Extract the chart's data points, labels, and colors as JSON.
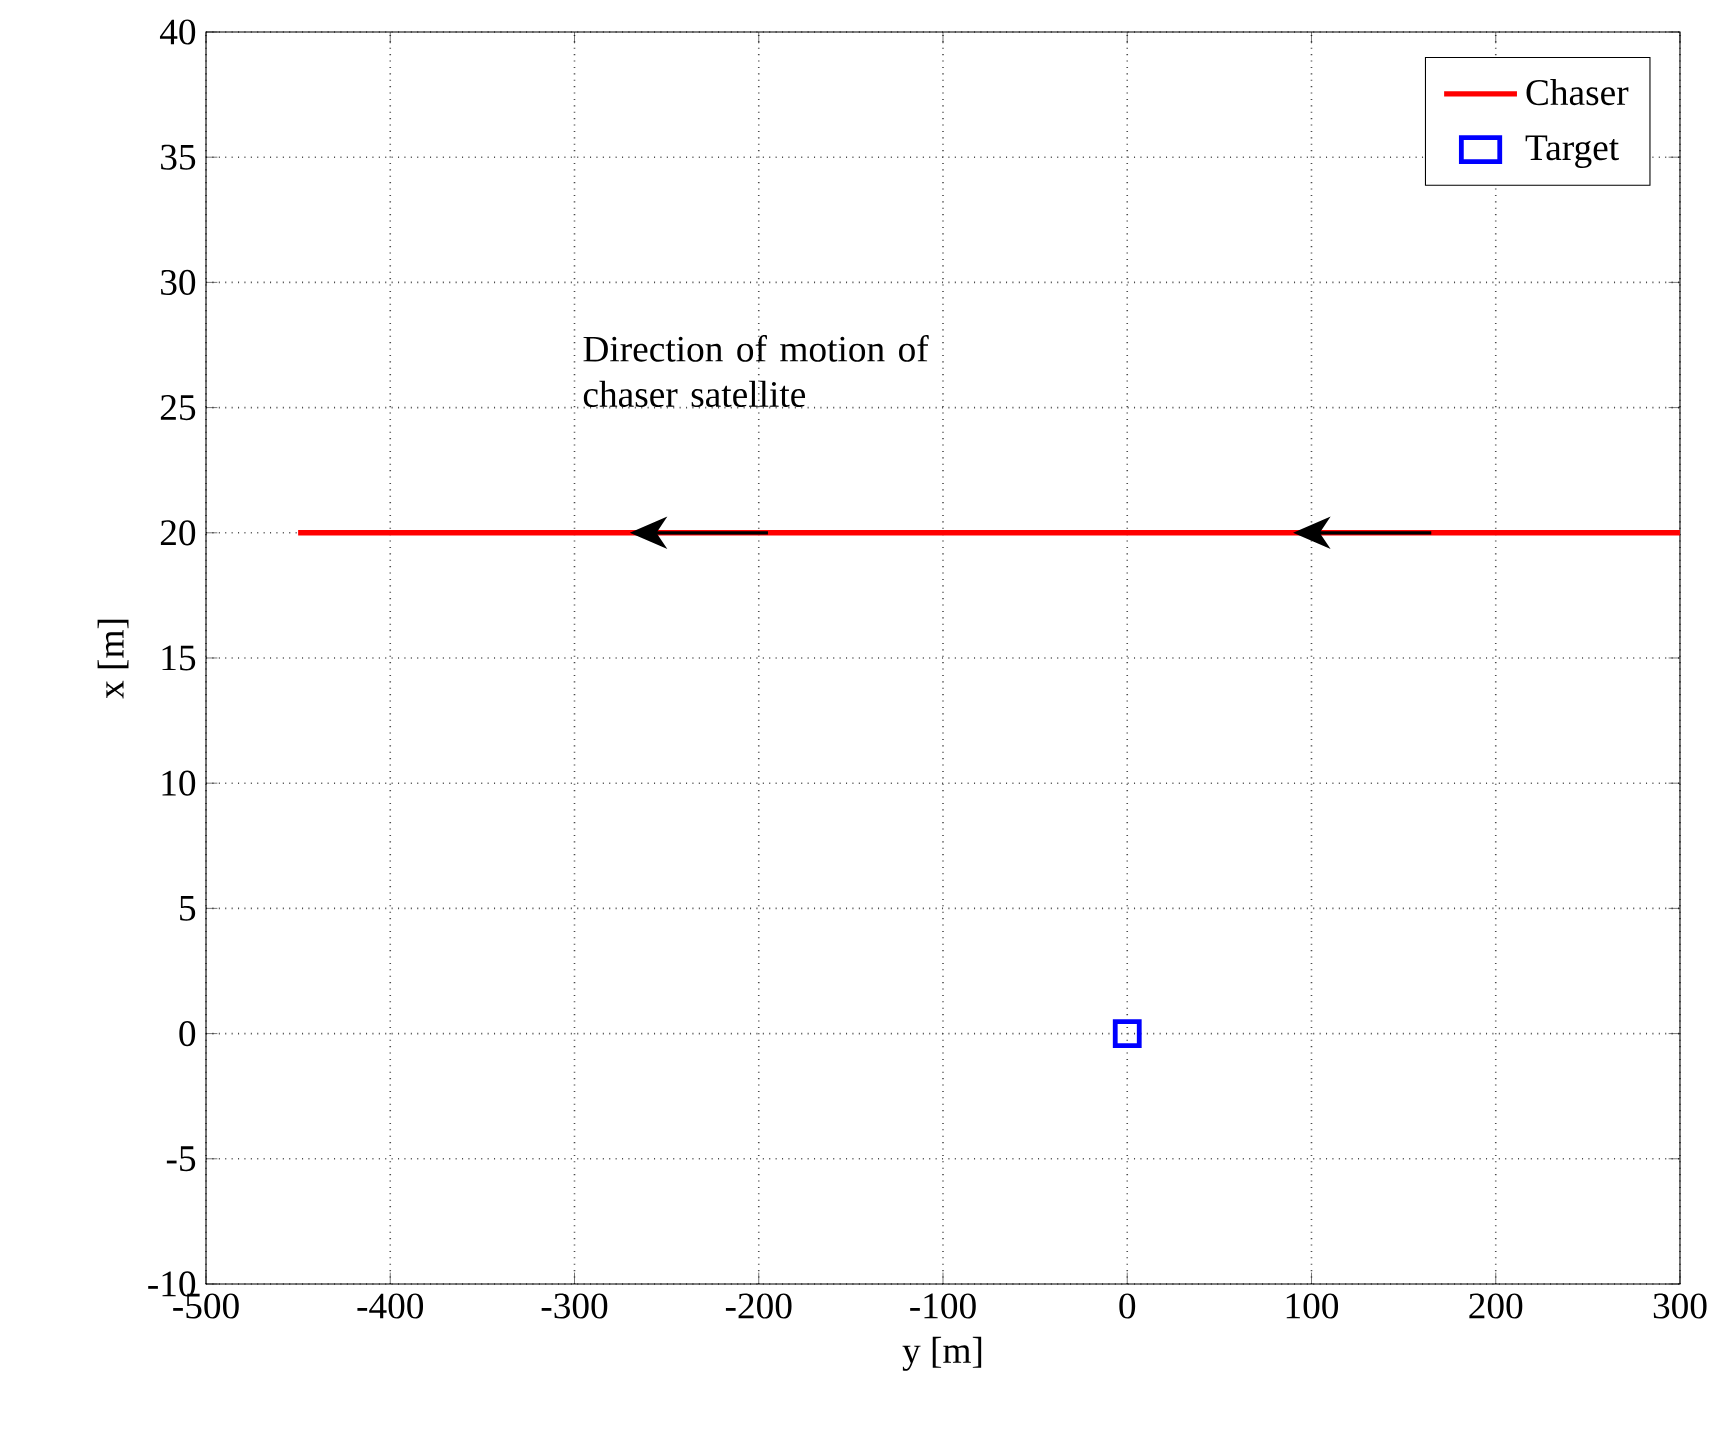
{
  "chart_data": {
    "type": "line",
    "xlabel": "y [m]",
    "ylabel": "x [m]",
    "xlim": [
      -500,
      300
    ],
    "xticks": [
      -500,
      -400,
      -300,
      -200,
      -100,
      0,
      100,
      200,
      300
    ],
    "ylim": [
      -10,
      40
    ],
    "yticks": [
      -10,
      -5,
      0,
      5,
      10,
      15,
      20,
      25,
      30,
      35,
      40
    ],
    "grid": true,
    "legend": "top right",
    "annotations": [
      "Direction of motion of chaser satellite"
    ],
    "series": [
      {
        "name": "Chaser",
        "color": "#ff0000",
        "x": [
          -450,
          300
        ],
        "values": [
          20,
          20
        ],
        "marker": "none",
        "line_style": "solid"
      },
      {
        "name": "Target",
        "type": "scatter",
        "color": "#0000ff",
        "x": [
          0
        ],
        "values": [
          0
        ],
        "marker": "square"
      }
    ]
  }
}
